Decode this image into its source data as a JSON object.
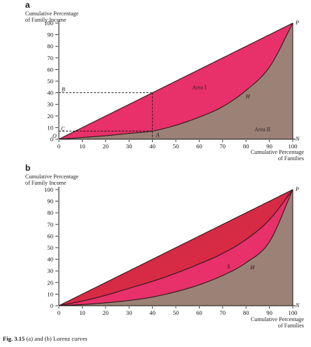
{
  "caption": {
    "fig_number": "Fig. 3.15",
    "text": "(a) and (b) Lorenz curves"
  },
  "colors": {
    "area_i": "#e8306a",
    "area_ii": "#9c8276",
    "area_b_inner": "#d72a45",
    "area_b_middle": "#e8306a",
    "line": "#2a1a1a"
  },
  "chart_data": [
    {
      "panel": "a",
      "type": "area",
      "ylabel": "Cumulative Percentage of Family Income",
      "ylabel_lines": [
        "Cumulative Percentage",
        "of Family Income"
      ],
      "xlabel": "Cumulative Percentage of Families",
      "xlabel_lines": [
        "Cumulative Percentage",
        "of Families"
      ],
      "xlim": [
        0,
        100
      ],
      "ylim": [
        0,
        100
      ],
      "xticks": [
        0,
        10,
        20,
        30,
        40,
        50,
        60,
        70,
        80,
        90,
        100
      ],
      "yticks": [
        0,
        10,
        20,
        30,
        40,
        50,
        60,
        70,
        80,
        90,
        100
      ],
      "xtick_labels": [
        "0",
        "10",
        "20",
        "30",
        "40",
        "50",
        "60",
        "70",
        "80",
        "90",
        "100"
      ],
      "ytick_labels": [
        "0",
        "10",
        "20",
        "30",
        "40",
        "50",
        "60",
        "70",
        "80",
        "90",
        "100"
      ],
      "grid": false,
      "series": [
        {
          "name": "",
          "role": "equality",
          "x": [
            0,
            100
          ],
          "y": [
            0,
            100
          ]
        },
        {
          "name": "H",
          "role": "lorenz",
          "x": [
            0,
            10,
            20,
            30,
            40,
            50,
            60,
            70,
            80,
            90,
            100
          ],
          "y": [
            0,
            1.5,
            3,
            5,
            7,
            12,
            19,
            28,
            42,
            62,
            100
          ]
        }
      ],
      "regions": [
        {
          "label": "Area I",
          "between": [
            "equality",
            "H"
          ],
          "color_key": "area_i",
          "at": [
            60,
            43
          ]
        },
        {
          "label": "Area II",
          "below": "H",
          "color_key": "area_ii",
          "at": [
            87,
            7
          ]
        }
      ],
      "annotations": [
        {
          "text": "P",
          "x": 100,
          "y": 100
        },
        {
          "text": "N",
          "x": 100,
          "y": 0
        },
        {
          "text": "O",
          "x": 0,
          "y": 0
        },
        {
          "text": "B",
          "x": 0,
          "y": 40
        },
        {
          "text": "C",
          "x": 0,
          "y": 7
        },
        {
          "text": "A",
          "x": 40,
          "y": 7
        },
        {
          "text": "H",
          "x": 79,
          "y": 37
        }
      ],
      "reference_lines": [
        {
          "from": [
            0,
            40
          ],
          "to": [
            40,
            40
          ],
          "style": "dashed"
        },
        {
          "from": [
            40,
            40
          ],
          "to": [
            40,
            0
          ],
          "style": "dashed"
        },
        {
          "from": [
            0,
            7
          ],
          "to": [
            40,
            7
          ],
          "style": "dashed"
        }
      ]
    },
    {
      "panel": "b",
      "type": "area",
      "ylabel": "Cumulative Percentage of Family Income",
      "ylabel_lines": [
        "Cumulative Percentage",
        "of Family Income"
      ],
      "xlabel": "Cumulative Percentage of Families",
      "xlabel_lines": [
        "Cumulative Percentage",
        "of Families"
      ],
      "xlim": [
        0,
        100
      ],
      "ylim": [
        0,
        100
      ],
      "xticks": [
        0,
        10,
        20,
        30,
        40,
        50,
        60,
        70,
        80,
        90,
        100
      ],
      "yticks": [
        0,
        10,
        20,
        30,
        40,
        50,
        60,
        70,
        80,
        90,
        100
      ],
      "xtick_labels": [
        "0",
        "10",
        "20",
        "30",
        "40",
        "50",
        "60",
        "70",
        "80",
        "90",
        "100"
      ],
      "ytick_labels": [
        "0",
        "10",
        "20",
        "30",
        "40",
        "50",
        "60",
        "70",
        "80",
        "90",
        "100"
      ],
      "grid": false,
      "series": [
        {
          "name": "",
          "role": "equality",
          "x": [
            0,
            100
          ],
          "y": [
            0,
            100
          ]
        },
        {
          "name": "S",
          "role": "lorenz",
          "x": [
            0,
            10,
            20,
            30,
            40,
            50,
            60,
            70,
            80,
            90,
            100
          ],
          "y": [
            0,
            4,
            9,
            15,
            21,
            28,
            36,
            45,
            57,
            74,
            100
          ]
        },
        {
          "name": "H",
          "role": "lorenz",
          "x": [
            0,
            10,
            20,
            30,
            40,
            50,
            60,
            70,
            80,
            90,
            100
          ],
          "y": [
            0,
            1,
            2.5,
            4.5,
            7.5,
            12,
            18,
            26,
            37,
            55,
            100
          ]
        }
      ],
      "regions": [
        {
          "between": [
            "equality",
            "S"
          ],
          "color_key": "area_b_inner"
        },
        {
          "between": [
            "S",
            "H"
          ],
          "color_key": "area_b_middle"
        },
        {
          "below": "H",
          "color_key": "area_ii"
        }
      ],
      "annotations": [
        {
          "text": "P",
          "x": 100,
          "y": 100
        },
        {
          "text": "N",
          "x": 100,
          "y": 0
        },
        {
          "text": "S",
          "x": 71,
          "y": 34
        },
        {
          "text": "H",
          "x": 81,
          "y": 33
        }
      ]
    }
  ]
}
